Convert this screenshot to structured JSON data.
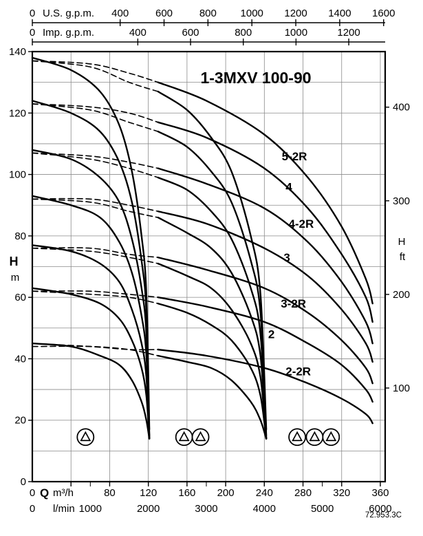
{
  "code": "72.953.3C",
  "axes": {
    "us_gpm": {
      "zero": "0",
      "label": "U.S. g.p.m.",
      "ticks": [
        400,
        600,
        800,
        1000,
        1200,
        1400,
        1600
      ],
      "per_m3h": 4.403
    },
    "imp_gpm": {
      "zero": "0",
      "label": "Imp. g.p.m.",
      "ticks": [
        400,
        600,
        800,
        1000,
        1200
      ],
      "per_m3h": 3.666
    },
    "h_m": {
      "label_h": "H",
      "label_unit": "m",
      "ticks": [
        0,
        20,
        40,
        60,
        80,
        100,
        120,
        140
      ]
    },
    "h_ft": {
      "label_h": "H",
      "label_unit": "ft",
      "ticks": [
        100,
        200,
        300,
        400
      ],
      "ft_per_m": 3.281
    },
    "q_m3h": {
      "zero": "0",
      "label_q": "Q",
      "label_unit": "m³/h",
      "ticks": [
        80,
        120,
        160,
        200,
        240,
        280,
        320,
        360
      ]
    },
    "q_lmin": {
      "zero": "0",
      "label_unit": "l/min",
      "ticks": [
        1000,
        2000,
        3000,
        4000,
        5000,
        6000
      ],
      "lmin_per_m3h": 16.667
    }
  },
  "chart_data": {
    "type": "line",
    "title": "1-3MXV 100-90",
    "xlabel": "Q",
    "x_units": [
      "m³/h",
      "l/min",
      "U.S. g.p.m.",
      "Imp. g.p.m."
    ],
    "ylabel": "H",
    "y_units": [
      "m",
      "ft"
    ],
    "xlim": [
      0,
      365
    ],
    "ylim": [
      0,
      140
    ],
    "grid": {
      "x_step": 40,
      "y_step": 10
    },
    "symbol_h": 14.5,
    "pump_groups": [
      {
        "count": 1,
        "q_centers": [
          55
        ]
      },
      {
        "count": 2,
        "q_centers": [
          157,
          174
        ]
      },
      {
        "count": 3,
        "q_centers": [
          274,
          292,
          309
        ]
      }
    ],
    "curve_labels": [
      {
        "text": "5-2R",
        "q": 258,
        "h": 106
      },
      {
        "text": "4",
        "q": 262,
        "h": 96
      },
      {
        "text": "4-2R",
        "q": 265,
        "h": 84
      },
      {
        "text": "3",
        "q": 260,
        "h": 73
      },
      {
        "text": "3-2R",
        "q": 257,
        "h": 58
      },
      {
        "text": "2",
        "q": 244,
        "h": 48
      },
      {
        "text": "2-2R",
        "q": 262,
        "h": 36
      }
    ],
    "series": [
      {
        "name": "5-2R",
        "pumps": 2,
        "dash": true,
        "points": [
          [
            0,
            137
          ],
          [
            60,
            135
          ],
          [
            100,
            130
          ],
          [
            130,
            127
          ]
        ]
      },
      {
        "name": "5-2R",
        "pumps": 3,
        "dash": true,
        "points": [
          [
            0,
            137
          ],
          [
            60,
            136
          ],
          [
            100,
            133
          ],
          [
            130,
            130
          ]
        ]
      },
      {
        "name": "5-2R",
        "pumps": 1,
        "dash": false,
        "points": [
          [
            0,
            138
          ],
          [
            40,
            134
          ],
          [
            70,
            127
          ],
          [
            90,
            116
          ],
          [
            103,
            101
          ],
          [
            113,
            80
          ],
          [
            118,
            61
          ],
          [
            121,
            17
          ]
        ]
      },
      {
        "name": "5-2R",
        "pumps": 2,
        "dash": false,
        "points": [
          [
            130,
            127
          ],
          [
            160,
            121
          ],
          [
            185,
            112
          ],
          [
            206,
            101
          ],
          [
            226,
            80
          ],
          [
            236,
            61
          ],
          [
            242,
            17
          ]
        ]
      },
      {
        "name": "5-2R",
        "pumps": 3,
        "dash": false,
        "points": [
          [
            130,
            130
          ],
          [
            180,
            124
          ],
          [
            240,
            113
          ],
          [
            285,
            99
          ],
          [
            320,
            83
          ],
          [
            345,
            66
          ],
          [
            352,
            58
          ]
        ]
      },
      {
        "name": "4",
        "pumps": 2,
        "dash": true,
        "points": [
          [
            0,
            123
          ],
          [
            60,
            121
          ],
          [
            100,
            117
          ],
          [
            130,
            114
          ]
        ]
      },
      {
        "name": "4",
        "pumps": 3,
        "dash": true,
        "points": [
          [
            0,
            123
          ],
          [
            60,
            122
          ],
          [
            100,
            120
          ],
          [
            130,
            117
          ]
        ]
      },
      {
        "name": "4",
        "pumps": 1,
        "dash": false,
        "points": [
          [
            0,
            124
          ],
          [
            40,
            120
          ],
          [
            70,
            114
          ],
          [
            90,
            104
          ],
          [
            103,
            91
          ],
          [
            113,
            72
          ],
          [
            118,
            55
          ],
          [
            121,
            15
          ]
        ]
      },
      {
        "name": "4",
        "pumps": 2,
        "dash": false,
        "points": [
          [
            130,
            114
          ],
          [
            160,
            109
          ],
          [
            185,
            101
          ],
          [
            206,
            91
          ],
          [
            226,
            72
          ],
          [
            236,
            55
          ],
          [
            242,
            15
          ]
        ]
      },
      {
        "name": "4",
        "pumps": 3,
        "dash": false,
        "points": [
          [
            130,
            117
          ],
          [
            180,
            112
          ],
          [
            240,
            102
          ],
          [
            285,
            89
          ],
          [
            320,
            74
          ],
          [
            345,
            60
          ],
          [
            352,
            52
          ]
        ]
      },
      {
        "name": "4-2R",
        "pumps": 2,
        "dash": true,
        "points": [
          [
            0,
            107
          ],
          [
            60,
            105
          ],
          [
            100,
            102
          ],
          [
            130,
            99
          ]
        ]
      },
      {
        "name": "4-2R",
        "pumps": 3,
        "dash": true,
        "points": [
          [
            0,
            107
          ],
          [
            60,
            106
          ],
          [
            100,
            104
          ],
          [
            130,
            102
          ]
        ]
      },
      {
        "name": "4-2R",
        "pumps": 1,
        "dash": false,
        "points": [
          [
            0,
            108
          ],
          [
            40,
            105
          ],
          [
            70,
            99
          ],
          [
            90,
            91
          ],
          [
            103,
            79
          ],
          [
            113,
            63
          ],
          [
            118,
            48
          ],
          [
            121,
            14
          ]
        ]
      },
      {
        "name": "4-2R",
        "pumps": 2,
        "dash": false,
        "points": [
          [
            130,
            99
          ],
          [
            160,
            95
          ],
          [
            185,
            88
          ],
          [
            206,
            79
          ],
          [
            226,
            63
          ],
          [
            236,
            48
          ],
          [
            242,
            14
          ]
        ]
      },
      {
        "name": "4-2R",
        "pumps": 3,
        "dash": false,
        "points": [
          [
            130,
            102
          ],
          [
            180,
            97
          ],
          [
            240,
            89
          ],
          [
            285,
            78
          ],
          [
            320,
            65
          ],
          [
            345,
            52
          ],
          [
            352,
            45
          ]
        ]
      },
      {
        "name": "3",
        "pumps": 2,
        "dash": true,
        "points": [
          [
            0,
            92
          ],
          [
            60,
            91
          ],
          [
            100,
            88
          ],
          [
            130,
            86
          ]
        ]
      },
      {
        "name": "3",
        "pumps": 3,
        "dash": true,
        "points": [
          [
            0,
            92
          ],
          [
            60,
            92
          ],
          [
            100,
            90
          ],
          [
            130,
            88
          ]
        ]
      },
      {
        "name": "3",
        "pumps": 1,
        "dash": false,
        "points": [
          [
            0,
            93
          ],
          [
            40,
            90
          ],
          [
            70,
            86
          ],
          [
            90,
            78
          ],
          [
            103,
            68
          ],
          [
            113,
            54
          ],
          [
            118,
            41
          ],
          [
            121,
            14
          ]
        ]
      },
      {
        "name": "3",
        "pumps": 2,
        "dash": false,
        "points": [
          [
            130,
            86
          ],
          [
            160,
            81
          ],
          [
            185,
            76
          ],
          [
            206,
            68
          ],
          [
            226,
            54
          ],
          [
            236,
            41
          ],
          [
            242,
            14
          ]
        ]
      },
      {
        "name": "3",
        "pumps": 3,
        "dash": false,
        "points": [
          [
            130,
            88
          ],
          [
            180,
            84
          ],
          [
            240,
            76
          ],
          [
            285,
            67
          ],
          [
            320,
            56
          ],
          [
            345,
            45
          ],
          [
            352,
            39
          ]
        ]
      },
      {
        "name": "3-2R",
        "pumps": 2,
        "dash": true,
        "points": [
          [
            0,
            76
          ],
          [
            60,
            75
          ],
          [
            100,
            73
          ],
          [
            130,
            71
          ]
        ]
      },
      {
        "name": "3-2R",
        "pumps": 3,
        "dash": true,
        "points": [
          [
            0,
            76
          ],
          [
            60,
            76
          ],
          [
            100,
            74
          ],
          [
            130,
            73
          ]
        ]
      },
      {
        "name": "3-2R",
        "pumps": 1,
        "dash": false,
        "points": [
          [
            0,
            77
          ],
          [
            40,
            75
          ],
          [
            70,
            71
          ],
          [
            90,
            65
          ],
          [
            103,
            56
          ],
          [
            113,
            45
          ],
          [
            118,
            34
          ],
          [
            121,
            14
          ]
        ]
      },
      {
        "name": "3-2R",
        "pumps": 2,
        "dash": false,
        "points": [
          [
            130,
            71
          ],
          [
            160,
            67
          ],
          [
            185,
            63
          ],
          [
            206,
            56
          ],
          [
            226,
            45
          ],
          [
            236,
            34
          ],
          [
            242,
            14
          ]
        ]
      },
      {
        "name": "3-2R",
        "pumps": 3,
        "dash": false,
        "points": [
          [
            130,
            73
          ],
          [
            180,
            69
          ],
          [
            240,
            63
          ],
          [
            285,
            55
          ],
          [
            320,
            46
          ],
          [
            345,
            37
          ],
          [
            352,
            32
          ]
        ]
      },
      {
        "name": "2",
        "pumps": 2,
        "dash": true,
        "points": [
          [
            0,
            62
          ],
          [
            60,
            61
          ],
          [
            100,
            60
          ],
          [
            130,
            58
          ]
        ]
      },
      {
        "name": "2",
        "pumps": 3,
        "dash": true,
        "points": [
          [
            0,
            62
          ],
          [
            60,
            62
          ],
          [
            100,
            61
          ],
          [
            130,
            60
          ]
        ]
      },
      {
        "name": "2",
        "pumps": 1,
        "dash": false,
        "points": [
          [
            0,
            63
          ],
          [
            40,
            61
          ],
          [
            70,
            58
          ],
          [
            90,
            53
          ],
          [
            103,
            46
          ],
          [
            113,
            37
          ],
          [
            118,
            28
          ],
          [
            121,
            14
          ]
        ]
      },
      {
        "name": "2",
        "pumps": 2,
        "dash": false,
        "points": [
          [
            130,
            58
          ],
          [
            160,
            55
          ],
          [
            185,
            51
          ],
          [
            206,
            46
          ],
          [
            226,
            37
          ],
          [
            236,
            28
          ],
          [
            242,
            14
          ]
        ]
      },
      {
        "name": "2",
        "pumps": 3,
        "dash": false,
        "points": [
          [
            130,
            60
          ],
          [
            180,
            57
          ],
          [
            240,
            52
          ],
          [
            285,
            45
          ],
          [
            320,
            38
          ],
          [
            345,
            30
          ],
          [
            352,
            26
          ]
        ]
      },
      {
        "name": "2-2R",
        "pumps": 2,
        "dash": true,
        "points": [
          [
            0,
            44
          ],
          [
            60,
            44
          ],
          [
            100,
            43
          ],
          [
            130,
            41
          ]
        ]
      },
      {
        "name": "2-2R",
        "pumps": 3,
        "dash": true,
        "points": [
          [
            0,
            45
          ],
          [
            60,
            44
          ],
          [
            100,
            43
          ],
          [
            130,
            43
          ]
        ]
      },
      {
        "name": "2-2R",
        "pumps": 1,
        "dash": false,
        "points": [
          [
            0,
            45
          ],
          [
            40,
            44
          ],
          [
            70,
            41
          ],
          [
            90,
            38
          ],
          [
            103,
            33
          ],
          [
            113,
            26
          ],
          [
            118,
            20
          ],
          [
            121,
            14
          ]
        ]
      },
      {
        "name": "2-2R",
        "pumps": 2,
        "dash": false,
        "points": [
          [
            130,
            41
          ],
          [
            160,
            39
          ],
          [
            185,
            37
          ],
          [
            206,
            33
          ],
          [
            226,
            26
          ],
          [
            236,
            20
          ],
          [
            242,
            14
          ]
        ]
      },
      {
        "name": "2-2R",
        "pumps": 3,
        "dash": false,
        "points": [
          [
            130,
            43
          ],
          [
            180,
            41
          ],
          [
            240,
            37
          ],
          [
            285,
            32
          ],
          [
            320,
            27
          ],
          [
            345,
            22
          ],
          [
            352,
            19
          ]
        ]
      }
    ]
  }
}
